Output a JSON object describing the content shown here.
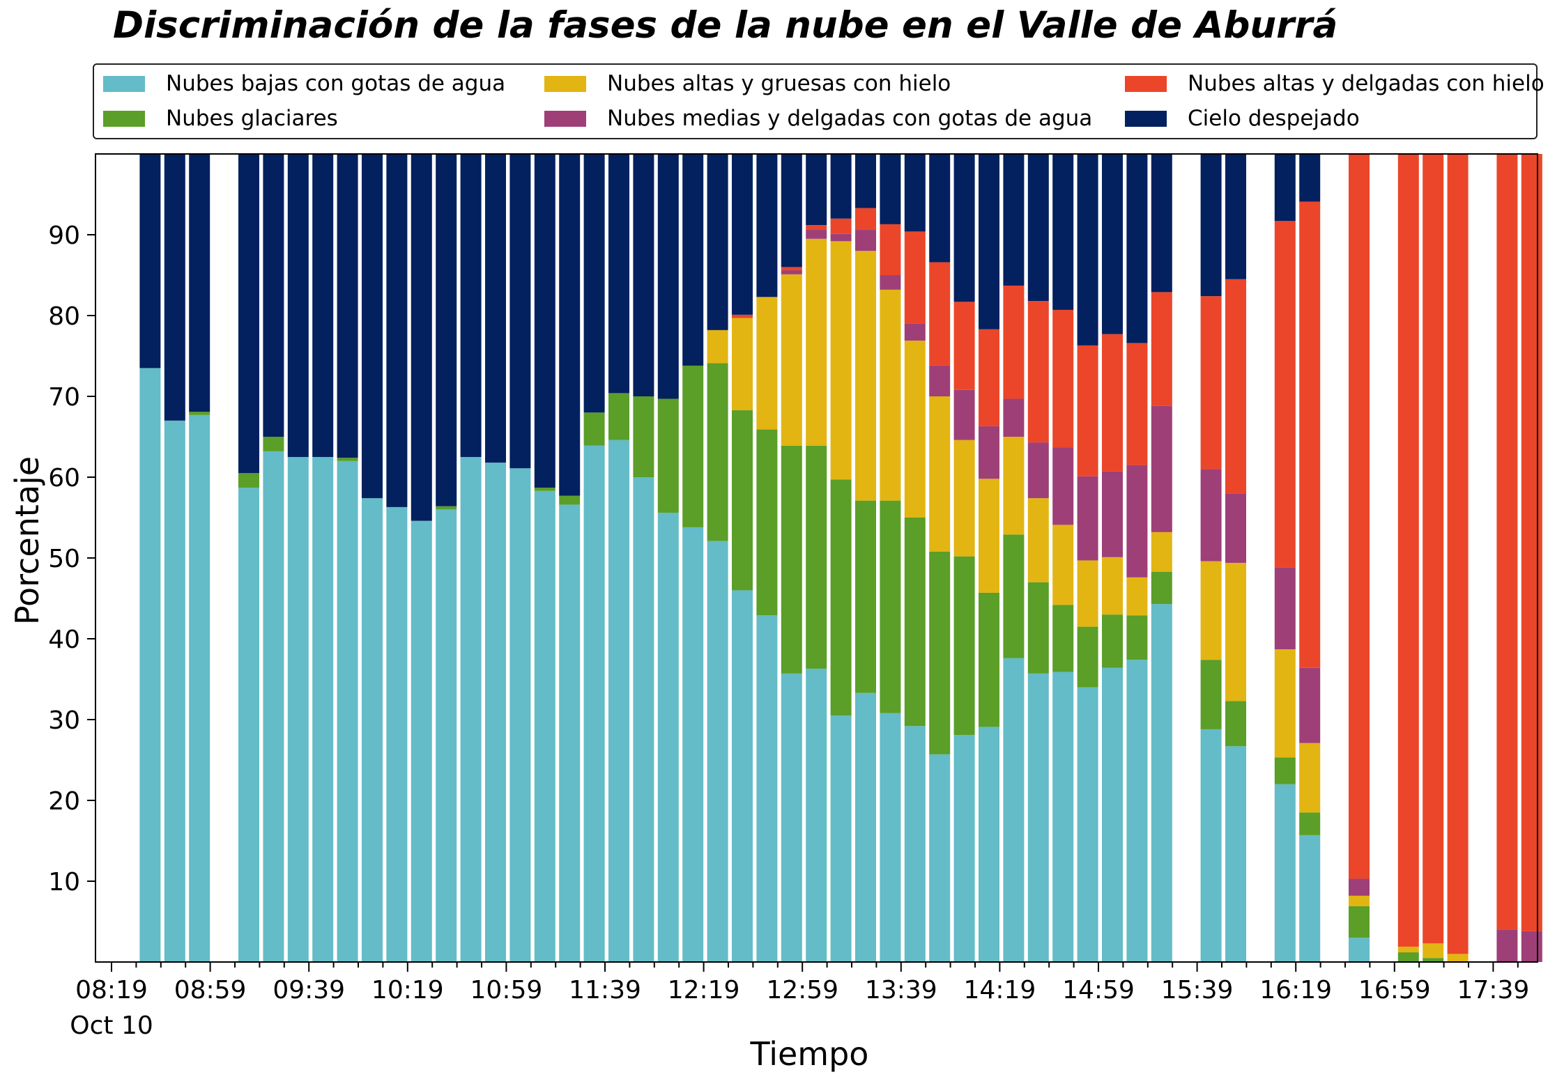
{
  "chart_data": {
    "type": "bar",
    "stacked": true,
    "title": "Discriminación de la fases de la nube en el Valle de Aburrá",
    "xlabel": "Tiempo",
    "ylabel": "Porcentaje",
    "ylim": [
      0,
      100
    ],
    "yticks": [
      10,
      20,
      30,
      40,
      50,
      60,
      70,
      80,
      90
    ],
    "xticks": [
      "08:19",
      "08:59",
      "09:39",
      "10:19",
      "10:59",
      "11:39",
      "12:19",
      "12:59",
      "13:39",
      "14:19",
      "14:59",
      "15:39",
      "16:19",
      "16:59",
      "17:39"
    ],
    "xtick_date": "Oct 10",
    "grid": false,
    "legend_position": "top",
    "interval_minutes": 10,
    "categories": [
      "08:19",
      "08:29",
      "08:39",
      "08:49",
      "08:59",
      "09:09",
      "09:19",
      "09:29",
      "09:39",
      "09:49",
      "09:59",
      "10:09",
      "10:19",
      "10:29",
      "10:39",
      "10:49",
      "10:59",
      "11:09",
      "11:19",
      "11:29",
      "11:39",
      "11:49",
      "11:59",
      "12:09",
      "12:19",
      "12:29",
      "12:39",
      "12:49",
      "12:59",
      "13:09",
      "13:19",
      "13:29",
      "13:39",
      "13:49",
      "13:59",
      "14:09",
      "14:19",
      "14:29",
      "14:39",
      "14:49",
      "14:59",
      "15:09",
      "15:19",
      "15:29",
      "15:39",
      "15:49",
      "15:59",
      "16:09",
      "16:19",
      "16:29",
      "16:39",
      "16:49",
      "16:59",
      "17:09",
      "17:19",
      "17:29",
      "17:39",
      "17:49"
    ],
    "series": [
      {
        "name": "Nubes bajas con gotas de agua",
        "color": "#63bcc8",
        "values": [
          0,
          73.5,
          67,
          67.7,
          0,
          58.7,
          63.2,
          62.5,
          62.5,
          62,
          57.4,
          56.3,
          54.6,
          56,
          62.5,
          61.8,
          61.1,
          58.3,
          56.6,
          63.9,
          64.6,
          60,
          55.6,
          53.8,
          52.1,
          46,
          42.9,
          35.7,
          36.3,
          30.5,
          33.3,
          30.8,
          29.2,
          25.7,
          28.1,
          29.1,
          37.6,
          35.7,
          35.9,
          34,
          36.4,
          37.4,
          44.3,
          0,
          28.8,
          26.7,
          0,
          22,
          15.7,
          0,
          3,
          0,
          0,
          0,
          0,
          0,
          0,
          0
        ]
      },
      {
        "name": "Nubes glaciares",
        "color": "#5b9e28",
        "values": [
          0,
          0,
          0,
          0.4,
          0,
          1.8,
          1.8,
          0,
          0,
          0.4,
          0,
          0,
          0,
          0.4,
          0,
          0,
          0,
          0.4,
          1.1,
          4.1,
          5.8,
          10,
          14.1,
          20,
          22,
          22.3,
          23,
          28.2,
          27.6,
          29.2,
          23.8,
          26.3,
          25.8,
          25.1,
          22.1,
          16.6,
          15.3,
          11.3,
          8.3,
          7.5,
          6.6,
          5.5,
          4,
          0,
          8.6,
          5.6,
          0,
          3.3,
          2.8,
          0,
          3.9,
          0,
          1.2,
          0.5,
          0,
          0,
          0,
          0
        ]
      },
      {
        "name": "Nubes altas y gruesas con hielo",
        "color": "#e2b513",
        "values": [
          0,
          0,
          0,
          0,
          0,
          0,
          0,
          0,
          0,
          0,
          0,
          0,
          0,
          0,
          0,
          0,
          0,
          0,
          0,
          0,
          0,
          0,
          0,
          0,
          4.1,
          11.4,
          16.4,
          21.2,
          25.6,
          29.5,
          30.9,
          26.1,
          21.9,
          19.2,
          14.4,
          14.1,
          12.1,
          10.4,
          9.9,
          8.2,
          7.1,
          4.7,
          4.9,
          0,
          12.2,
          17.1,
          0,
          13.4,
          8.6,
          0,
          1.3,
          0,
          0.7,
          1.8,
          1,
          0,
          0,
          0
        ]
      },
      {
        "name": "Nubes medias y delgadas con gotas de agua",
        "color": "#9e3f78",
        "values": [
          0,
          0,
          0,
          0,
          0,
          0,
          0,
          0,
          0,
          0,
          0,
          0,
          0,
          0,
          0,
          0,
          0,
          0,
          0,
          0,
          0,
          0,
          0,
          0,
          0,
          0,
          0,
          0.5,
          1.1,
          0.9,
          2.6,
          1.8,
          2.1,
          3.8,
          6.2,
          6.5,
          4.7,
          6.9,
          9.6,
          10.4,
          10.6,
          13.9,
          15.6,
          0,
          11.4,
          8.6,
          0,
          10.1,
          9.3,
          0,
          2.1,
          0,
          0,
          0,
          0,
          0,
          4,
          3.8
        ]
      },
      {
        "name": "Nubes altas y delgadas con hielo",
        "color": "#eb462a",
        "values": [
          0,
          0,
          0,
          0,
          0,
          0,
          0,
          0,
          0,
          0,
          0,
          0,
          0,
          0,
          0,
          0,
          0,
          0,
          0,
          0,
          0,
          0,
          0,
          0,
          0,
          0.4,
          0,
          0.4,
          0.6,
          1.9,
          2.7,
          6.3,
          11.4,
          12.8,
          10.9,
          12,
          14,
          17.5,
          17,
          16.2,
          17,
          15.1,
          14.1,
          0,
          21.4,
          26.5,
          0,
          42.9,
          57.7,
          0,
          89.7,
          0,
          98.1,
          97.7,
          99,
          0,
          96,
          96.2
        ]
      },
      {
        "name": "Cielo despejado",
        "color": "#03205f",
        "values": [
          0,
          26.5,
          33,
          31.9,
          0,
          39.5,
          35,
          37.5,
          37.5,
          37.6,
          42.6,
          43.7,
          45.4,
          43.6,
          37.5,
          38.2,
          38.9,
          41.3,
          42.3,
          32,
          29.6,
          30,
          30.3,
          26.2,
          21.8,
          19.9,
          17.7,
          14,
          8.8,
          8,
          6.7,
          8.7,
          9.6,
          13.4,
          18.3,
          21.7,
          16.3,
          18.2,
          19.3,
          23.7,
          22.3,
          23.4,
          17.1,
          0,
          17.6,
          15.5,
          0,
          8.3,
          5.9,
          0,
          0,
          0,
          0,
          0,
          0,
          0,
          0,
          0
        ]
      }
    ]
  }
}
